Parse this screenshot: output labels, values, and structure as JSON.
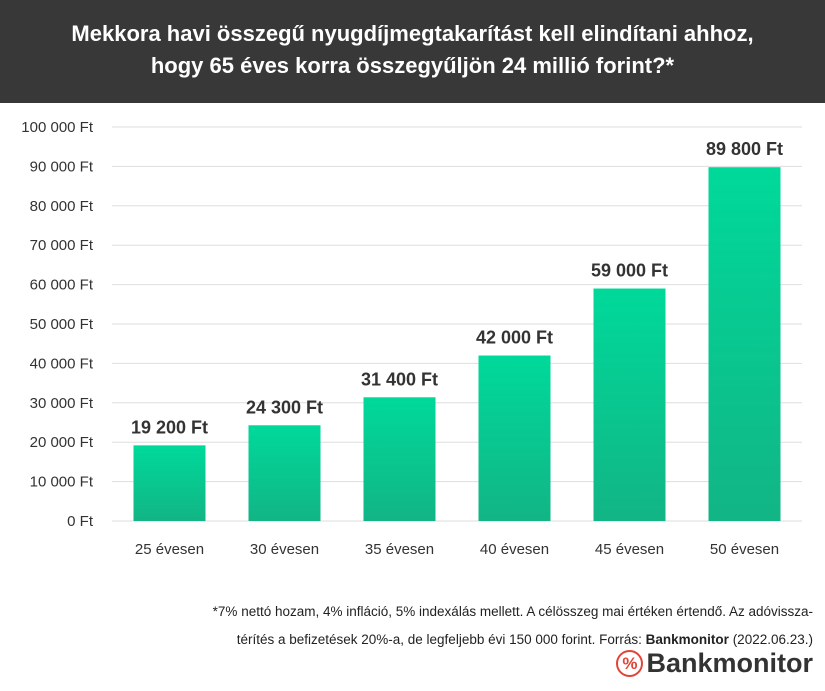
{
  "chart_data": {
    "type": "bar",
    "title": "Mekkora havi összegű nyugdíjmegtakarítást kell elindítani ahhoz, hogy 65 éves korra összegyűljön 24 millió forint?*",
    "title_lines": [
      "Mekkora havi összegű nyugdíjmegtakarítást kell elindítani ahhoz,",
      "hogy 65 éves korra összegyűljön 24 millió forint?*"
    ],
    "categories": [
      "25 évesen",
      "30 évesen",
      "35 évesen",
      "40 évesen",
      "45 évesen",
      "50 évesen"
    ],
    "values": [
      19200,
      24300,
      31400,
      42000,
      59000,
      89800
    ],
    "data_labels": [
      "19 200 Ft",
      "24 300 Ft",
      "31 400 Ft",
      "42 000 Ft",
      "59 000 Ft",
      "89 800 Ft"
    ],
    "yticks": [
      0,
      10000,
      20000,
      30000,
      40000,
      50000,
      60000,
      70000,
      80000,
      90000,
      100000
    ],
    "ytick_labels": [
      "0 Ft",
      "10 000 Ft",
      "20 000 Ft",
      "30 000 Ft",
      "40 000 Ft",
      "50 000 Ft",
      "60 000 Ft",
      "70 000 Ft",
      "80 000 Ft",
      "90 000 Ft",
      "100 000 Ft"
    ],
    "ylim": [
      0,
      100000
    ],
    "grid": true,
    "colors": {
      "bar_top": "#00d99a",
      "bar_bottom": "#12b585",
      "header": "#383838"
    }
  },
  "footnote": {
    "line1": "*7% nettó hozam, 4% infláció, 5% indexálás mellett. A célösszeg mai értéken értendő. Az adóvissza-",
    "line2_pre": "térítés a befizetések 20%-a, de legfeljebb évi 150 000 forint. Forrás: ",
    "source": "Bankmonitor",
    "date": " (2022.06.23.)"
  },
  "logo": {
    "symbol": "%",
    "text": "Bankmonitor"
  }
}
